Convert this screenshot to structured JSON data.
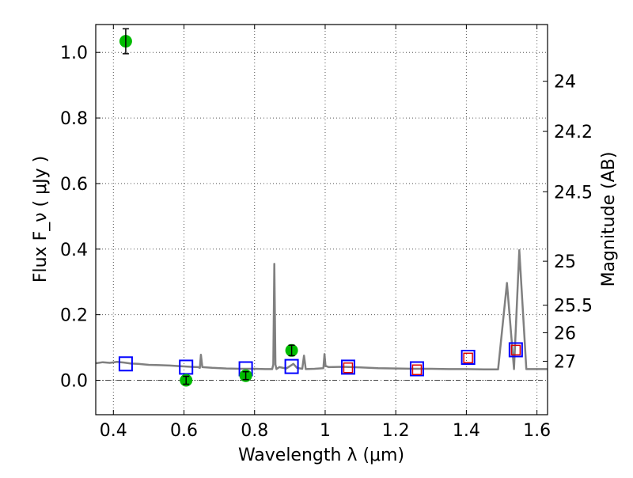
{
  "chart_data": {
    "type": "scatter",
    "xlabel": "Wavelength  λ (μm)",
    "ylabel": "Flux  F_ν  ( μJy )",
    "ylabel_right": "Magnitude (AB)",
    "xlim": [
      0.35,
      1.63
    ],
    "ylim": [
      -0.105,
      1.085
    ],
    "grid": true,
    "x_ticks": [
      {
        "value": 0.4,
        "label": "0.4"
      },
      {
        "value": 0.6,
        "label": "0.6"
      },
      {
        "value": 0.8,
        "label": "0.8"
      },
      {
        "value": 1.0,
        "label": "1"
      },
      {
        "value": 1.2,
        "label": "1.2"
      },
      {
        "value": 1.4,
        "label": "1.4"
      },
      {
        "value": 1.6,
        "label": "1.6"
      }
    ],
    "y_ticks": [
      {
        "value": 0.0,
        "label": "0.0"
      },
      {
        "value": 0.2,
        "label": "0.2"
      },
      {
        "value": 0.4,
        "label": "0.4"
      },
      {
        "value": 0.6,
        "label": "0.6"
      },
      {
        "value": 0.8,
        "label": "0.8"
      },
      {
        "value": 1.0,
        "label": "1.0"
      }
    ],
    "right_ticks": [
      {
        "label": "24",
        "flux": 0.912
      },
      {
        "label": "24.2",
        "flux": 0.759
      },
      {
        "label": "24.5",
        "flux": 0.575
      },
      {
        "label": "25",
        "flux": 0.363
      },
      {
        "label": "25.5",
        "flux": 0.229
      },
      {
        "label": "26",
        "flux": 0.145
      },
      {
        "label": "27",
        "flux": 0.058
      }
    ],
    "colors": {
      "model": "#808080",
      "observed": "#00bb00",
      "synthetic_all": "#0000ff",
      "synthetic_nir": "#dd0000",
      "grid": "#555555",
      "zero_line": "#444444"
    },
    "model_spectrum": [
      [
        0.35,
        0.052
      ],
      [
        0.37,
        0.055
      ],
      [
        0.39,
        0.053
      ],
      [
        0.41,
        0.056
      ],
      [
        0.43,
        0.054
      ],
      [
        0.45,
        0.051
      ],
      [
        0.47,
        0.05
      ],
      [
        0.5,
        0.047
      ],
      [
        0.53,
        0.046
      ],
      [
        0.56,
        0.045
      ],
      [
        0.59,
        0.043
      ],
      [
        0.62,
        0.041
      ],
      [
        0.64,
        0.04
      ],
      [
        0.645,
        0.038
      ],
      [
        0.648,
        0.078
      ],
      [
        0.652,
        0.04
      ],
      [
        0.68,
        0.038
      ],
      [
        0.72,
        0.036
      ],
      [
        0.76,
        0.035
      ],
      [
        0.8,
        0.035
      ],
      [
        0.83,
        0.034
      ],
      [
        0.85,
        0.034
      ],
      [
        0.853,
        0.048
      ],
      [
        0.856,
        0.355
      ],
      [
        0.859,
        0.048
      ],
      [
        0.862,
        0.034
      ],
      [
        0.87,
        0.04
      ],
      [
        0.89,
        0.036
      ],
      [
        0.91,
        0.05
      ],
      [
        0.92,
        0.038
      ],
      [
        0.935,
        0.035
      ],
      [
        0.94,
        0.075
      ],
      [
        0.945,
        0.034
      ],
      [
        0.97,
        0.035
      ],
      [
        0.995,
        0.037
      ],
      [
        0.998,
        0.08
      ],
      [
        1.001,
        0.044
      ],
      [
        1.01,
        0.04
      ],
      [
        1.05,
        0.041
      ],
      [
        1.1,
        0.039
      ],
      [
        1.15,
        0.037
      ],
      [
        1.2,
        0.036
      ],
      [
        1.25,
        0.035
      ],
      [
        1.3,
        0.035
      ],
      [
        1.35,
        0.034
      ],
      [
        1.4,
        0.034
      ],
      [
        1.45,
        0.033
      ],
      [
        1.49,
        0.033
      ],
      [
        1.515,
        0.297
      ],
      [
        1.535,
        0.034
      ],
      [
        1.55,
        0.397
      ],
      [
        1.57,
        0.034
      ],
      [
        1.63,
        0.034
      ]
    ],
    "observed_points": [
      {
        "x": 0.435,
        "y": 1.034,
        "err": 0.038
      },
      {
        "x": 0.606,
        "y": 0.0,
        "err": 0.012
      },
      {
        "x": 0.775,
        "y": 0.014,
        "err": 0.012
      },
      {
        "x": 0.905,
        "y": 0.091,
        "err": 0.016
      }
    ],
    "synthetic_all_points": [
      {
        "x": 0.435,
        "y": 0.05
      },
      {
        "x": 0.606,
        "y": 0.04
      },
      {
        "x": 0.775,
        "y": 0.035
      },
      {
        "x": 0.905,
        "y": 0.042
      },
      {
        "x": 1.065,
        "y": 0.04
      },
      {
        "x": 1.26,
        "y": 0.035
      },
      {
        "x": 1.405,
        "y": 0.07
      },
      {
        "x": 1.54,
        "y": 0.093
      }
    ],
    "synthetic_nir_points": [
      {
        "x": 1.065,
        "y": 0.038
      },
      {
        "x": 1.26,
        "y": 0.032
      },
      {
        "x": 1.405,
        "y": 0.068
      },
      {
        "x": 1.54,
        "y": 0.092
      }
    ]
  }
}
